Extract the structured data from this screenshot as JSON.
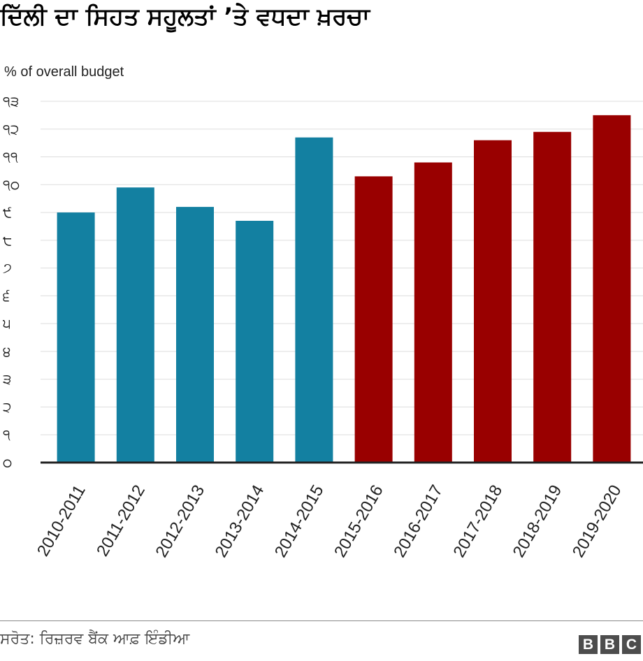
{
  "title": "ਦਿੱਲੀ ਦਾ ਸਿਹਤ ਸਹੂਲਤਾਂ ’ਤੇ ਵਧਦਾ ਖ਼ਰਚਾ",
  "source": "ਸਰੋਤ: ਰਿਜ਼ਰਵ ਬੈਂਕ ਆਫ਼ ਇੰਡੀਆ",
  "logo": [
    "B",
    "B",
    "C"
  ],
  "chart_data": {
    "type": "bar",
    "ylabel": "% of overall budget",
    "xlabel": "",
    "categories": [
      "2010-2011",
      "2011-2012",
      "2012-2013",
      "2013-2014",
      "2014-2015",
      "2015-2016",
      "2016-2017",
      "2017-2018",
      "2018-2019",
      "2019-2020"
    ],
    "values": [
      9.0,
      9.9,
      9.2,
      8.7,
      11.7,
      10.3,
      10.8,
      11.6,
      11.9,
      12.5
    ],
    "bar_colors": [
      "#1380a1",
      "#1380a1",
      "#1380a1",
      "#1380a1",
      "#1380a1",
      "#990000",
      "#990000",
      "#990000",
      "#990000",
      "#990000"
    ],
    "ylim": [
      0,
      13
    ],
    "yticks": [
      0,
      1,
      2,
      3,
      4,
      5,
      6,
      7,
      8,
      9,
      10,
      11,
      12,
      13
    ],
    "ytick_labels": [
      "੦",
      "੧",
      "੨",
      "੩",
      "੪",
      "੫",
      "੬",
      "੭",
      "੮",
      "੯",
      "੧੦",
      "੧੧",
      "੧੨",
      "੧੩"
    ],
    "grid": true,
    "legend": "none"
  }
}
